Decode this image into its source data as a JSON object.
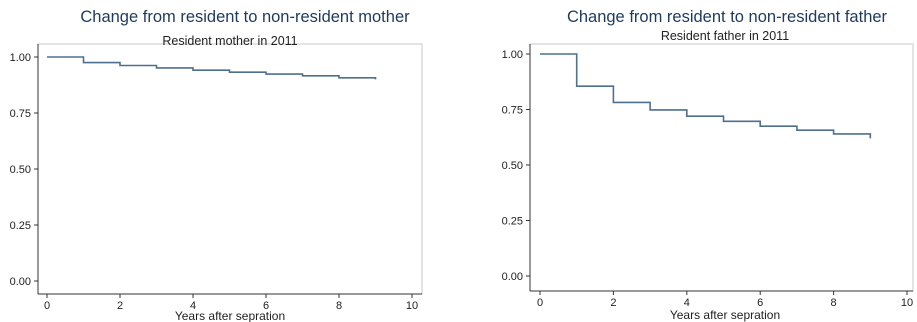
{
  "chart_data": [
    {
      "type": "line",
      "step": true,
      "title": "Change from resident to non-resident mother",
      "subtitle": "Resident mother in 2011",
      "xlabel": "Years after sepration",
      "ylabel": "",
      "xlim": [
        0,
        10
      ],
      "ylim": [
        0,
        1
      ],
      "xticks": [
        "0",
        "2",
        "4",
        "6",
        "8",
        "10"
      ],
      "yticks": [
        "0.00",
        "0.25",
        "0.50",
        "0.75",
        "1.00"
      ],
      "grid": false,
      "series": [
        {
          "x": [
            0,
            1,
            2,
            3,
            4,
            5,
            6,
            7,
            8,
            9
          ],
          "y": [
            1.0,
            0.975,
            0.962,
            0.951,
            0.941,
            0.932,
            0.924,
            0.916,
            0.907,
            0.9
          ]
        }
      ]
    },
    {
      "type": "line",
      "step": true,
      "title": "Change from resident to non-resident father",
      "subtitle": "Resident father in 2011",
      "xlabel": "Years after sepration",
      "ylabel": "",
      "xlim": [
        0,
        10
      ],
      "ylim": [
        0,
        1
      ],
      "xticks": [
        "0",
        "2",
        "4",
        "6",
        "8",
        "10"
      ],
      "yticks": [
        "0.00",
        "0.25",
        "0.50",
        "0.75",
        "1.00"
      ],
      "grid": false,
      "series": [
        {
          "x": [
            0,
            1,
            2,
            3,
            4,
            5,
            6,
            7,
            8,
            9
          ],
          "y": [
            1.0,
            0.855,
            0.782,
            0.748,
            0.72,
            0.697,
            0.675,
            0.657,
            0.64,
            0.62
          ]
        }
      ]
    }
  ]
}
